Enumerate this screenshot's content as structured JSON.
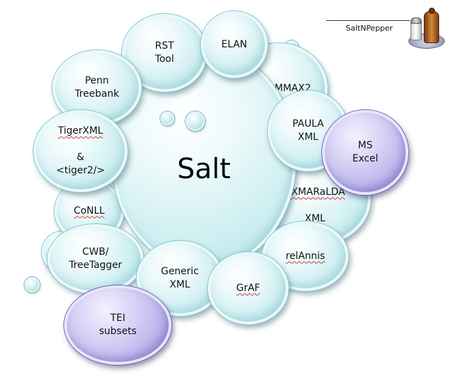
{
  "logo": {
    "text": "SaltNPepper"
  },
  "center": {
    "label": "Salt"
  },
  "bubbles": {
    "rst_tool": "RST\nTool",
    "elan": "ELAN",
    "mmax2": "MMAX2",
    "penn_treebank": "Penn\nTreebank",
    "paula_xml": "PAULA\nXML",
    "ms_excel": "MS\nExcel",
    "tigerxml_line1": "TigerXML",
    "tigerxml_rest": "&\n<tiger2/>",
    "exmaralda_line1": "EXMARaLDA",
    "exmaralda_line2": "XML",
    "conll": "CoNLL",
    "relannis": "relAnnis",
    "cwb_treetagger": "CWB/\nTreeTagger",
    "generic_xml": "Generic\nXML",
    "graf": "GrAF",
    "tei_subsets": "TEI\nsubsets"
  },
  "colors": {
    "bubble": "#cdeef1",
    "bubble_outline": "#7ec7cc",
    "purple_bubble": "#b6aee8",
    "spell_underline": "#d23a3a"
  }
}
